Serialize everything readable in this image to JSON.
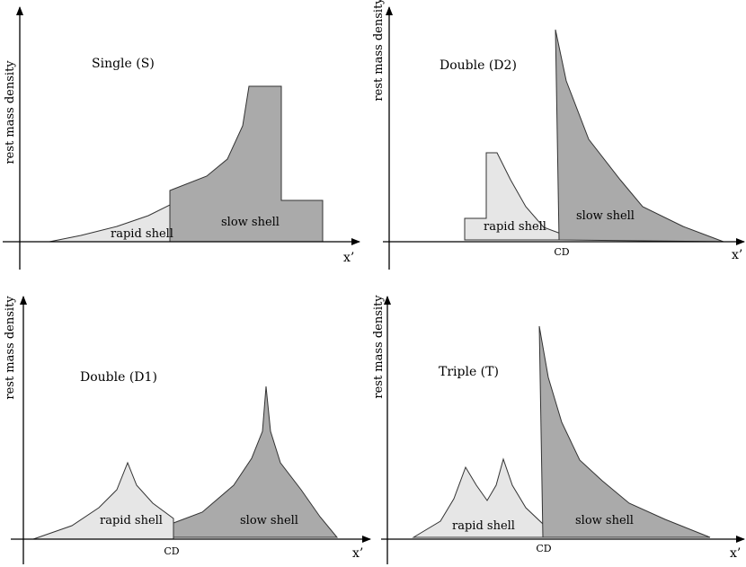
{
  "panels": [
    {
      "title": "Single (S)",
      "ylabel": "rest mass density",
      "xlabel": "x’",
      "rapid_label": "rapid shell",
      "slow_label": "slow shell",
      "cd_label": ""
    },
    {
      "title": "Double (D2)",
      "ylabel": "rest mass density",
      "xlabel": "x’",
      "rapid_label": "rapid shell",
      "slow_label": "slow shell",
      "cd_label": "CD"
    },
    {
      "title": "Double (D1)",
      "ylabel": "rest mass density",
      "xlabel": "x’",
      "rapid_label": "rapid shell",
      "slow_label": "slow shell",
      "cd_label": "CD"
    },
    {
      "title": "Triple (T)",
      "ylabel": "rest mass density",
      "xlabel": "x’",
      "rapid_label": "rapid shell",
      "slow_label": "slow shell",
      "cd_label": "CD"
    }
  ],
  "colors": {
    "rapid_fill": "#e6e6e6",
    "slow_fill": "#aaaaaa",
    "stroke": "#333333",
    "axis": "#000000"
  }
}
